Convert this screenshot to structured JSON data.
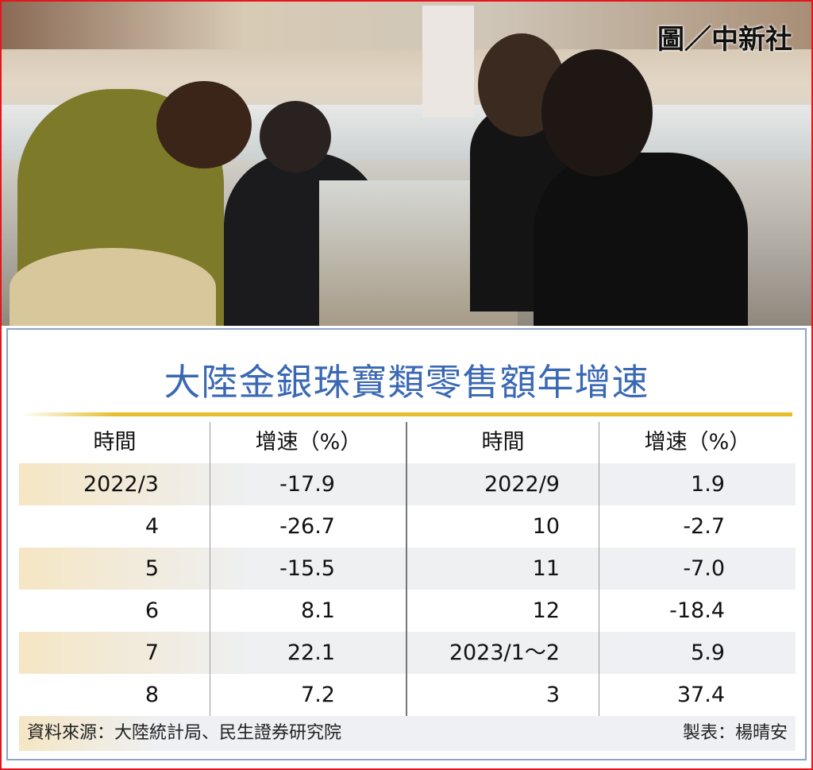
{
  "photo": {
    "watermark": "圖／中新社"
  },
  "chart_data": {
    "type": "table",
    "title": "大陸金銀珠寶類零售額年增速",
    "columns": [
      "時間",
      "增速（%）",
      "時間",
      "增速（%）"
    ],
    "rows_left": [
      {
        "time": "2022/3",
        "value": "-17.9"
      },
      {
        "time": "4",
        "value": "-26.7"
      },
      {
        "time": "5",
        "value": "-15.5"
      },
      {
        "time": "6",
        "value": "8.1"
      },
      {
        "time": "7",
        "value": "22.1"
      },
      {
        "time": "8",
        "value": "7.2"
      }
    ],
    "rows_right": [
      {
        "time": "2022/9",
        "value": "1.9"
      },
      {
        "time": "10",
        "value": "-2.7"
      },
      {
        "time": "11",
        "value": "-7.0"
      },
      {
        "time": "12",
        "value": "-18.4"
      },
      {
        "time": "2023/1～2",
        "value": "5.9"
      },
      {
        "time": "3",
        "value": "37.4"
      }
    ],
    "source": "資料來源：大陸統計局、民生證券研究院",
    "credit": "製表：楊晴安"
  },
  "colors": {
    "title": "#3a68b4",
    "accent_line": "#e6bd2b",
    "border": "#e8141c",
    "stripe": "#eef0f3"
  }
}
